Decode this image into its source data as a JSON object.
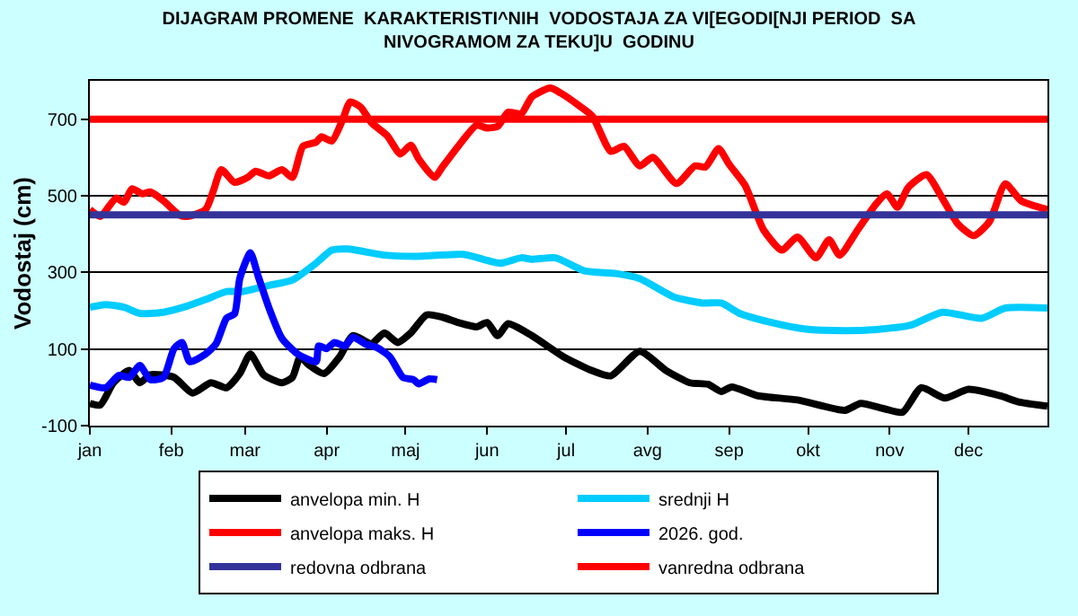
{
  "chart_data": {
    "type": "line",
    "title": "DIJAGRAM PROMENE  KARAKTERISTI^NIH  VODOSTAJA ZA VI[EGODI[NJI PERIOD  SA\nNIVOGRAMOM ZA TEKU]U  GODINU",
    "ylabel": "Vodostaj (cm)",
    "xlim": [
      "--01-01",
      "--12-31"
    ],
    "xticks": [
      {
        "value": "--01-01",
        "label": "jan"
      },
      {
        "value": "--02-01",
        "label": "feb"
      },
      {
        "value": "--03-01",
        "label": "mar"
      },
      {
        "value": "--04-01",
        "label": "apr"
      },
      {
        "value": "--05-01",
        "label": "maj"
      },
      {
        "value": "--06-01",
        "label": "jun"
      },
      {
        "value": "--07-01",
        "label": "jul"
      },
      {
        "value": "--08-01",
        "label": "avg"
      },
      {
        "value": "--09-01",
        "label": "sep"
      },
      {
        "value": "--10-01",
        "label": "okt"
      },
      {
        "value": "--11-01",
        "label": "nov"
      },
      {
        "value": "--12-01",
        "label": "dec"
      }
    ],
    "ylim": [
      -100,
      800
    ],
    "yticks": [
      -100,
      100,
      300,
      500,
      700
    ],
    "grid": "y",
    "legend": "bottom",
    "marker": "none",
    "line_style": "solid",
    "series": [
      {
        "name": "anvelopa min. H",
        "color": "#000000",
        "x": [
          "--01-01",
          "--01-05",
          "--01-10",
          "--01-16",
          "--01-20",
          "--01-24",
          "--02-02",
          "--02-09",
          "--02-16",
          "--02-22",
          "--02-27",
          "--03-03",
          "--03-08",
          "--03-15",
          "--03-19",
          "--03-22",
          "--03-25",
          "--03-31",
          "--04-06",
          "--04-11",
          "--04-18",
          "--04-23",
          "--04-28",
          "--05-03",
          "--05-09",
          "--05-15",
          "--05-21",
          "--05-28",
          "--06-01",
          "--06-05",
          "--06-09",
          "--06-18",
          "--06-30",
          "--07-10",
          "--07-18",
          "--07-29",
          "--08-08",
          "--08-17",
          "--08-24",
          "--08-29",
          "--09-02",
          "--09-12",
          "--09-27",
          "--10-15",
          "--10-21",
          "--10-30",
          "--11-06",
          "--11-13",
          "--11-22",
          "--12-01",
          "--12-13",
          "--12-20",
          "--12-31"
        ],
        "values": [
          -42,
          -46,
          12,
          44,
          12,
          33,
          26,
          -15,
          12,
          -1,
          36,
          87,
          33,
          12,
          26,
          80,
          60,
          36,
          80,
          135,
          114,
          142,
          117,
          142,
          189,
          183,
          169,
          158,
          169,
          135,
          166,
          135,
          80,
          46,
          30,
          94,
          44,
          12,
          8,
          -11,
          1,
          -22,
          -33,
          -60,
          -42,
          -56,
          -65,
          -1,
          -28,
          -5,
          -22,
          -38,
          -49
        ]
      },
      {
        "name": "srednji H",
        "color": "#00ccff",
        "x": [
          "--01-01",
          "--01-07",
          "--01-14",
          "--01-20",
          "--01-29",
          "--02-07",
          "--02-14",
          "--02-22",
          "--02-28",
          "--03-10",
          "--03-19",
          "--03-28",
          "--04-03",
          "--04-09",
          "--04-23",
          "--05-05",
          "--05-23",
          "--06-06",
          "--06-14",
          "--06-18",
          "--06-27",
          "--07-08",
          "--07-20",
          "--07-29",
          "--08-11",
          "--08-22",
          "--08-29",
          "--09-05",
          "--09-16",
          "--09-30",
          "--10-15",
          "--10-27",
          "--11-09",
          "--11-21",
          "--12-06",
          "--12-15",
          "--12-31"
        ],
        "values": [
          209,
          216,
          209,
          193,
          196,
          212,
          229,
          250,
          250,
          266,
          280,
          324,
          358,
          361,
          345,
          342,
          347,
          324,
          338,
          334,
          338,
          304,
          297,
          284,
          236,
          220,
          220,
          193,
          171,
          152,
          148,
          151,
          162,
          196,
          180,
          207,
          207
        ]
      },
      {
        "name": "anvelopa maks. H",
        "color": "#ff0000",
        "x": [
          "--01-01",
          "--01-05",
          "--01-11",
          "--01-14",
          "--01-17",
          "--01-21",
          "--01-24",
          "--01-29",
          "--02-04",
          "--02-07",
          "--02-14",
          "--02-17",
          "--02-20",
          "--02-25",
          "--03-02",
          "--03-05",
          "--03-10",
          "--03-15",
          "--03-19",
          "--03-23",
          "--03-28",
          "--03-30",
          "--04-03",
          "--04-07",
          "--04-10",
          "--04-14",
          "--04-18",
          "--04-24",
          "--04-29",
          "--05-03",
          "--05-06",
          "--05-12",
          "--05-15",
          "--05-21",
          "--05-28",
          "--06-01",
          "--06-05",
          "--06-09",
          "--06-14",
          "--06-18",
          "--06-25",
          "--06-29",
          "--07-06",
          "--07-11",
          "--07-18",
          "--07-23",
          "--07-29",
          "--08-03",
          "--08-12",
          "--08-19",
          "--08-23",
          "--08-28",
          "--09-01",
          "--09-07",
          "--09-14",
          "--09-21",
          "--09-27",
          "--10-04",
          "--10-09",
          "--10-13",
          "--10-20",
          "--10-27",
          "--10-31",
          "--11-04",
          "--11-08",
          "--11-15",
          "--11-21",
          "--11-27",
          "--12-03",
          "--12-09",
          "--12-15",
          "--12-21",
          "--12-31"
        ],
        "values": [
          464,
          446,
          494,
          483,
          518,
          505,
          510,
          487,
          450,
          446,
          464,
          514,
          568,
          535,
          548,
          564,
          552,
          568,
          548,
          629,
          640,
          654,
          643,
          697,
          745,
          731,
          691,
          657,
          609,
          632,
          596,
          548,
          575,
          629,
          684,
          677,
          681,
          718,
          714,
          758,
          781,
          768,
          735,
          708,
          616,
          629,
          578,
          600,
          532,
          578,
          575,
          623,
          582,
          528,
          412,
          358,
          392,
          338,
          385,
          345,
          412,
          480,
          505,
          470,
          521,
          555,
          494,
          426,
          396,
          433,
          531,
          487,
          464
        ]
      },
      {
        "name": "2026. god.",
        "color": "#0000ff",
        "x": [
          "--01-01",
          "--01-07",
          "--01-12",
          "--01-16",
          "--01-20",
          "--01-24",
          "--01-29",
          "--02-02",
          "--02-05",
          "--02-08",
          "--02-14",
          "--02-18",
          "--02-22",
          "--02-25",
          "--02-27",
          "--03-03",
          "--03-06",
          "--03-10",
          "--03-15",
          "--03-21",
          "--03-28",
          "--03-29",
          "--04-01",
          "--04-04",
          "--04-08",
          "--04-11",
          "--04-16",
          "--04-20",
          "--04-25",
          "--04-30",
          "--05-04",
          "--05-06",
          "--05-10",
          "--05-13"
        ],
        "values": [
          6,
          -1,
          31,
          26,
          57,
          20,
          26,
          101,
          117,
          67,
          87,
          114,
          181,
          192,
          284,
          351,
          290,
          209,
          128,
          87,
          67,
          108,
          101,
          117,
          108,
          131,
          112,
          104,
          80,
          26,
          20,
          9,
          22,
          20
        ]
      }
    ],
    "ref_lines": [
      {
        "axis": "y",
        "value": 450,
        "label": "redovna odbrana",
        "color": "#333399"
      },
      {
        "axis": "y",
        "value": 700,
        "label": "vanredna odbrana",
        "color": "#ff0000"
      }
    ]
  }
}
